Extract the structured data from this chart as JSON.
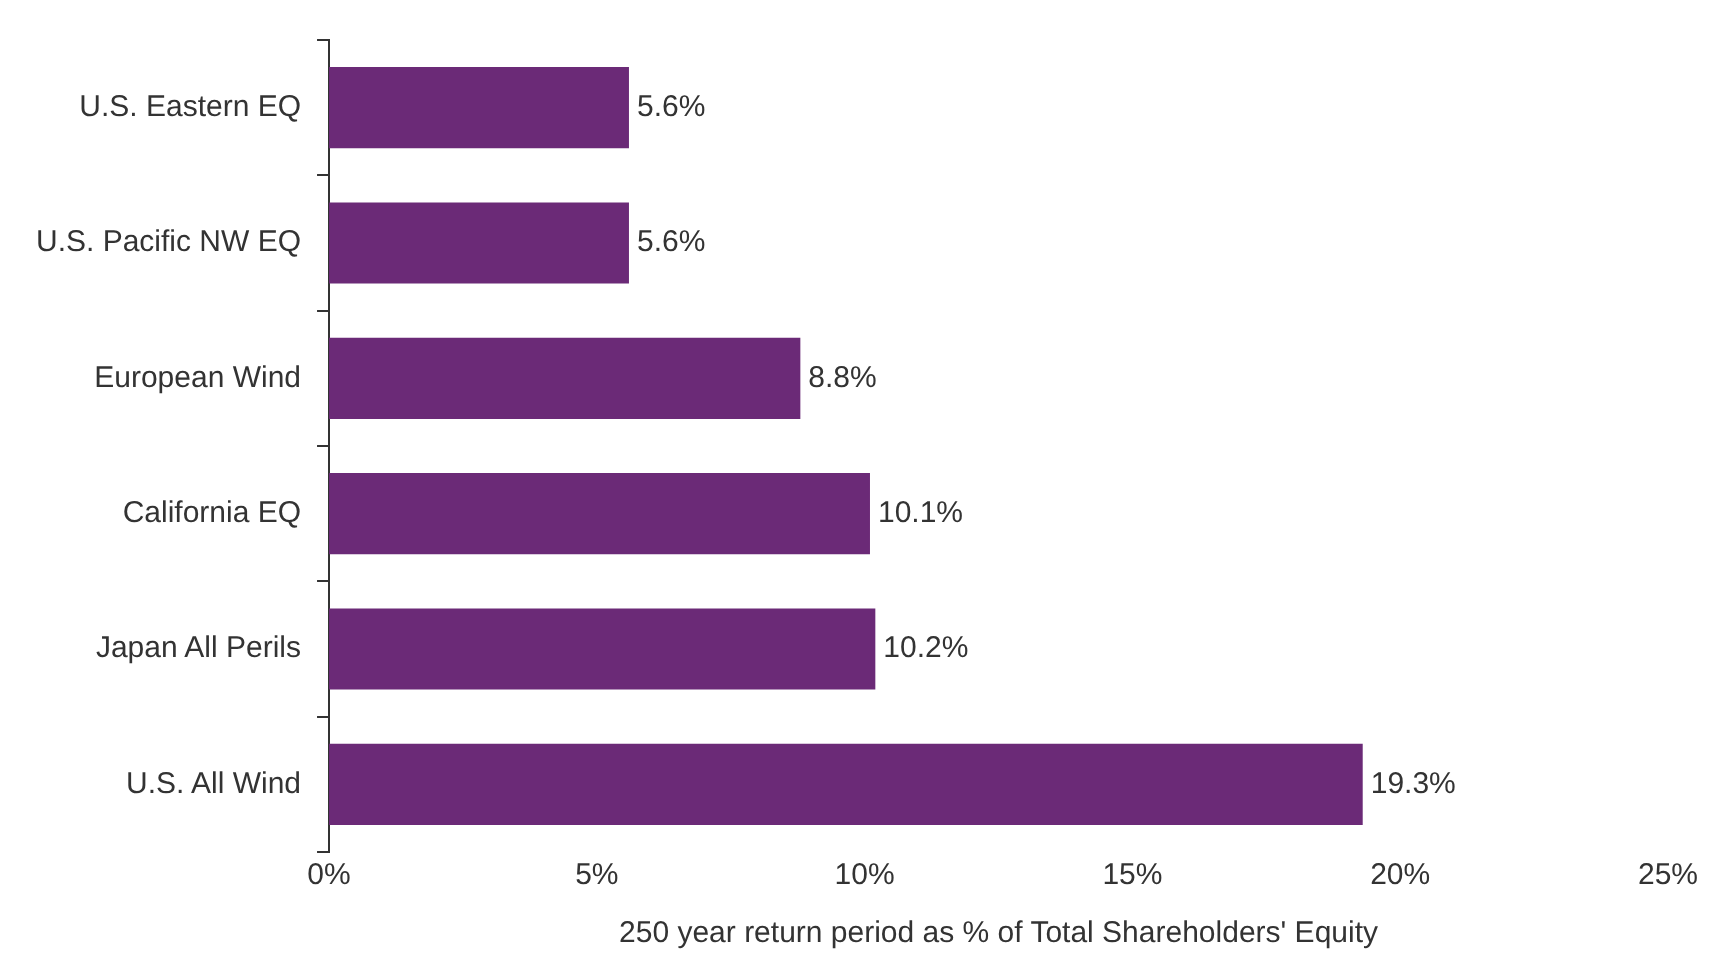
{
  "chart_data": {
    "type": "bar",
    "orientation": "horizontal",
    "xlabel": "250 year return period as % of Total Shareholders' Equity",
    "categories": [
      "U.S. Eastern EQ",
      "U.S. Pacific NW EQ",
      "European Wind",
      "California EQ",
      "Japan All Perils",
      "U.S. All Wind"
    ],
    "values": [
      5.6,
      5.6,
      8.8,
      10.1,
      10.2,
      19.3
    ],
    "value_labels": [
      "5.6%",
      "5.6%",
      "8.8%",
      "10.1%",
      "10.2%",
      "19.3%"
    ],
    "color": "#6b2a77",
    "xlim": [
      0,
      25
    ],
    "xticks": [
      {
        "value": 0,
        "label": "0%"
      },
      {
        "value": 5,
        "label": "5%"
      },
      {
        "value": 10,
        "label": "10%"
      },
      {
        "value": 15,
        "label": "15%"
      },
      {
        "value": 20,
        "label": "20%"
      },
      {
        "value": 25,
        "label": "25%"
      }
    ],
    "grid": false,
    "legend": false
  }
}
